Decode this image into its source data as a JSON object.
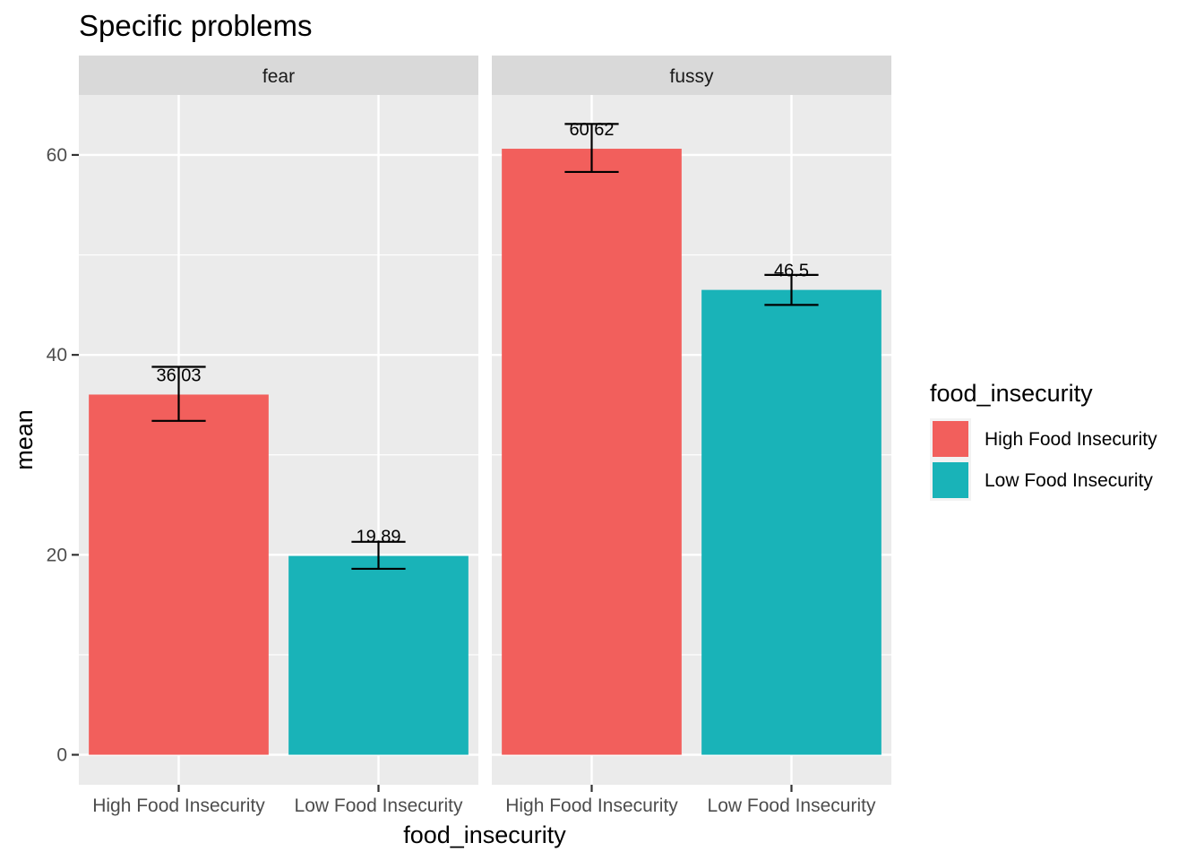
{
  "chart_data": {
    "type": "bar",
    "title": "Specific problems",
    "xlabel": "food_insecurity",
    "ylabel": "mean",
    "ylim": [
      -3,
      66
    ],
    "yticks": [
      0,
      20,
      40,
      60
    ],
    "grid": true,
    "legend_position": "right",
    "legend": {
      "title": "food_insecurity",
      "entries": [
        {
          "label": "High Food Insecurity",
          "color": "#F25F5C"
        },
        {
          "label": "Low Food Insecurity",
          "color": "#19B3B8"
        }
      ]
    },
    "categories": [
      "High Food Insecurity",
      "Low Food Insecurity"
    ],
    "facets": [
      {
        "name": "fear",
        "values": [
          36.03,
          19.89
        ],
        "labels": [
          "36.03",
          "19.89"
        ],
        "error_lower": [
          33.4,
          18.6
        ],
        "error_upper": [
          38.8,
          21.3
        ]
      },
      {
        "name": "fussy",
        "values": [
          60.62,
          46.5
        ],
        "labels": [
          "60.62",
          "46.5"
        ],
        "error_lower": [
          58.3,
          45.0
        ],
        "error_upper": [
          63.1,
          48.0
        ]
      }
    ]
  }
}
